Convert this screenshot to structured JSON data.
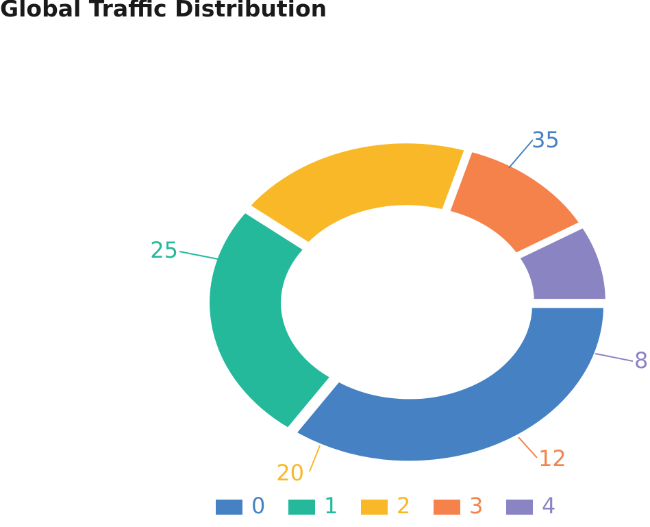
{
  "chart_data": {
    "type": "pie",
    "title": "Global Traffic Distribution",
    "categories": [
      "0",
      "1",
      "2",
      "3",
      "4"
    ],
    "values": [
      35,
      25,
      20,
      12,
      8
    ],
    "colors": [
      "#4681c3",
      "#24b99b",
      "#f9b828",
      "#f4824a",
      "#8a84c2"
    ],
    "data_labels": [
      "35",
      "25",
      "20",
      "12",
      "8"
    ],
    "legend": {
      "position": "bottom",
      "items": [
        "0",
        "1",
        "2",
        "3",
        "4"
      ]
    },
    "donut": true,
    "exploded": true
  }
}
